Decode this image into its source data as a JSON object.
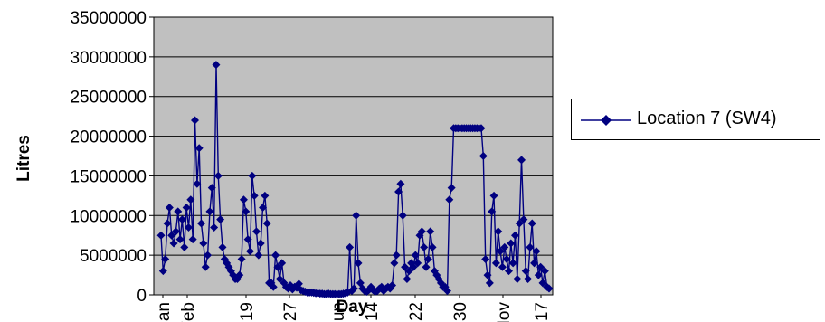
{
  "chart_data": {
    "type": "line",
    "title": "",
    "xlabel": "Day",
    "ylabel": "Litres",
    "ylim": [
      0,
      35000000
    ],
    "yticks": [
      "0",
      "5000000",
      "10000000",
      "15000000",
      "20000000",
      "25000000",
      "30000000",
      "35000000"
    ],
    "xticks": [
      "Jan",
      "Feb",
      "19",
      "27",
      "Jun",
      "14",
      "22",
      "30",
      "Nov",
      "17"
    ],
    "grid": true,
    "legend_position": "right",
    "series": [
      {
        "name": "Location 7 (SW4)",
        "color": "#000080",
        "values": [
          7500000,
          3000000,
          4500000,
          9000000,
          11000000,
          7500000,
          6500000,
          8000000,
          10500000,
          7000000,
          9500000,
          6000000,
          11000000,
          8500000,
          12000000,
          7000000,
          22000000,
          14000000,
          18500000,
          9000000,
          6500000,
          3500000,
          5000000,
          10500000,
          13500000,
          8500000,
          29000000,
          15000000,
          9500000,
          6000000,
          4500000,
          4000000,
          3500000,
          3000000,
          2500000,
          2000000,
          2000000,
          2500000,
          4500000,
          12000000,
          10500000,
          7000000,
          5500000,
          15000000,
          12500000,
          8000000,
          5000000,
          6500000,
          11000000,
          12500000,
          9000000,
          1500000,
          1500000,
          1000000,
          5000000,
          3500000,
          2000000,
          4000000,
          1500000,
          1000000,
          800000,
          1200000,
          700000,
          1000000,
          900000,
          1400000,
          600000,
          500000,
          400000,
          300000,
          300000,
          300000,
          250000,
          200000,
          200000,
          150000,
          150000,
          100000,
          100000,
          150000,
          100000,
          100000,
          100000,
          100000,
          100000,
          100000,
          150000,
          200000,
          300000,
          6000000,
          500000,
          800000,
          10000000,
          4000000,
          1500000,
          800000,
          500000,
          400000,
          600000,
          1000000,
          600000,
          400000,
          500000,
          800000,
          1000000,
          500000,
          800000,
          1000000,
          800000,
          1200000,
          4000000,
          5000000,
          13000000,
          14000000,
          10000000,
          3500000,
          2000000,
          3000000,
          4000000,
          3500000,
          5000000,
          4000000,
          7500000,
          8000000,
          6000000,
          3500000,
          4500000,
          8000000,
          6000000,
          3000000,
          2500000,
          2000000,
          1500000,
          1000000,
          1000000,
          500000,
          12000000,
          13500000,
          21000000,
          21000000,
          21000000,
          21000000,
          21000000,
          21000000,
          21000000,
          21000000,
          21000000,
          21000000,
          21000000,
          21000000,
          21000000,
          21000000,
          17500000,
          4500000,
          2500000,
          1500000,
          10500000,
          12500000,
          4000000,
          8000000,
          5500000,
          3500000,
          6000000,
          4500000,
          3000000,
          6500000,
          4000000,
          7500000,
          2000000,
          9000000,
          17000000,
          9500000,
          3000000,
          2000000,
          6000000,
          9000000,
          4000000,
          5500000,
          2500000,
          3500000,
          1500000,
          3000000,
          1000000,
          800000
        ]
      }
    ]
  }
}
